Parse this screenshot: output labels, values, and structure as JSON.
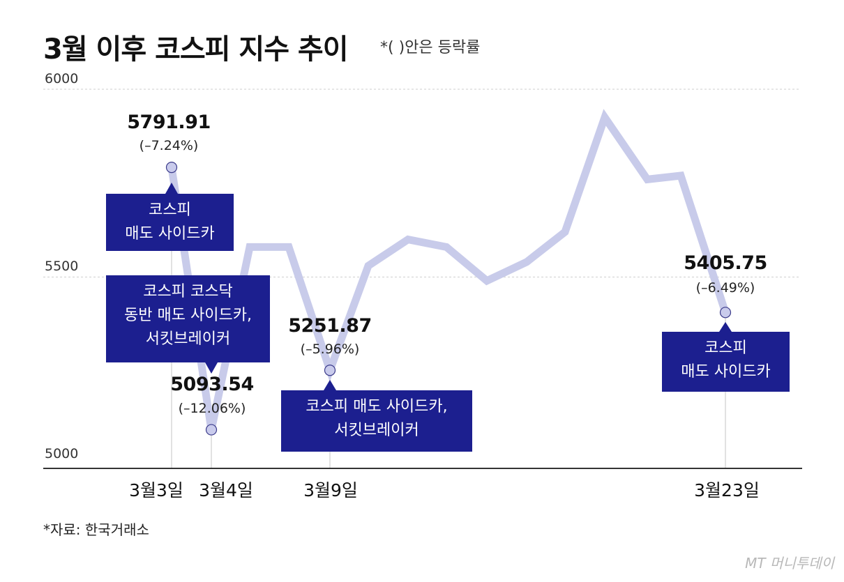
{
  "title": "3월 이후 코스피 지수 추이",
  "subtitle": "*( )안은 등락률",
  "source": "*자료: 한국거래소",
  "logo": "MT 머니투데이",
  "colors": {
    "line": "#c8cbea",
    "box": "#1c1f8f",
    "marker": "#c9cbec"
  },
  "chart_data": {
    "type": "line",
    "title": "3월 이후 코스피 지수 추이",
    "ylim": [
      5000,
      6000
    ],
    "y_ticks": [
      5000,
      5500,
      6000
    ],
    "x_tick_labels": [
      "3월3일",
      "3월4일",
      "3월9일",
      "3월23일"
    ],
    "series": [
      {
        "name": "코스피",
        "values": [
          5791.91,
          5093.54,
          5580,
          5580,
          5251.87,
          5530,
          5600,
          5580,
          5490,
          5540,
          5620,
          5925,
          5760,
          5770,
          5405.75
        ]
      }
    ],
    "annotations": [
      {
        "date": "3월3일",
        "value": 5791.91,
        "value_label": "5791.91",
        "change": "(–7.24%)",
        "event": [
          "코스피",
          "매도 사이드카"
        ]
      },
      {
        "date": "3월4일",
        "value": 5093.54,
        "value_label": "5093.54",
        "change": "(–12.06%)",
        "event": [
          "코스피 코스닥",
          "동반 매도 사이드카,",
          "서킷브레이커"
        ]
      },
      {
        "date": "3월9일",
        "value": 5251.87,
        "value_label": "5251.87",
        "change": "(–5.96%)",
        "event": [
          "코스피 매도 사이드카,",
          "서킷브레이커"
        ]
      },
      {
        "date": "3월23일",
        "value": 5405.75,
        "value_label": "5405.75",
        "change": "(–6.49%)",
        "event": [
          "코스피",
          "매도 사이드카"
        ]
      }
    ]
  }
}
